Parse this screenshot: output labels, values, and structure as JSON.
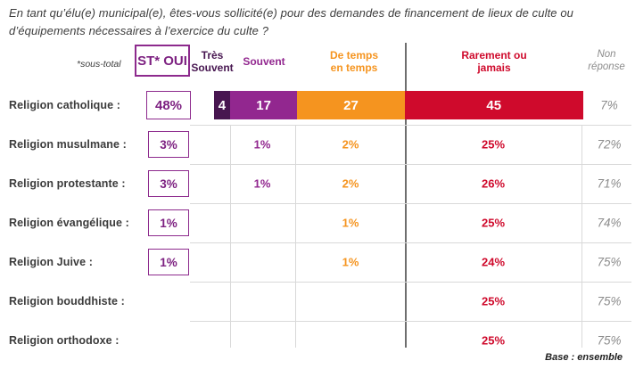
{
  "title": "En tant qu’élu(e) municipal(e), êtes-vous sollicité(e) pour des demandes de financement de lieux de culte ou d’équipements nécessaires à l’exercice du culte ?",
  "header": {
    "subtotal_note": "*sous-total",
    "st_oui_label": "ST* OUI",
    "columns": [
      {
        "label": "Très\nSouvent",
        "color": "#471650",
        "italic": false
      },
      {
        "label": "Souvent",
        "color": "#92278f",
        "italic": false
      },
      {
        "label": "De temps\nen temps",
        "color": "#f5941f",
        "italic": false
      },
      {
        "label": "Rarement ou\njamais",
        "color": "#cf0a2c",
        "italic": false
      },
      {
        "label": "Non\nréponse",
        "color": "#8c8c8c",
        "italic": true
      }
    ]
  },
  "footer": {
    "base_note": "Base : ensemble"
  },
  "colors": {
    "tres_souvent": "#471650",
    "souvent": "#92278f",
    "de_temps_en_temps": "#f5941f",
    "rarement_ou_jamais": "#cf0a2c",
    "non_reponse": "#8c8c8c",
    "st_oui_purple": "#7d2181",
    "grid_light": "#d9d9d9",
    "grid_dark": "#6e6e6e"
  },
  "chart_data": {
    "type": "bar",
    "orientation": "horizontal-stacked-table",
    "title": "En tant qu’élu(e) municipal(e), êtes-vous sollicité(e) pour des demandes de financement de lieux de culte ou d’équipements nécessaires à l’exercice du culte ?",
    "categories": [
      "Religion catholique :",
      "Religion musulmane :",
      "Religion protestante :",
      "Religion évangélique :",
      "Religion Juive :",
      "Religion bouddhiste :",
      "Religion orthodoxe :"
    ],
    "st_oui_values": [
      "48%",
      "3%",
      "3%",
      "1%",
      "1%",
      null,
      null
    ],
    "series": [
      {
        "name": "Très Souvent",
        "color": "#471650",
        "values": [
          4,
          null,
          null,
          null,
          null,
          null,
          null
        ]
      },
      {
        "name": "Souvent",
        "color": "#92278f",
        "values": [
          17,
          1,
          1,
          null,
          null,
          null,
          null
        ]
      },
      {
        "name": "De temps en temps",
        "color": "#f5941f",
        "values": [
          27,
          2,
          2,
          1,
          1,
          null,
          null
        ]
      },
      {
        "name": "Rarement ou jamais",
        "color": "#cf0a2c",
        "values": [
          45,
          25,
          26,
          25,
          24,
          25,
          25
        ]
      },
      {
        "name": "Non réponse",
        "color": "#8c8c8c",
        "values": [
          7,
          72,
          71,
          74,
          75,
          75,
          75
        ]
      }
    ],
    "first_row_rendered_as_stacked_bar": true,
    "values_unit": "%",
    "base_note": "Base : ensemble"
  }
}
